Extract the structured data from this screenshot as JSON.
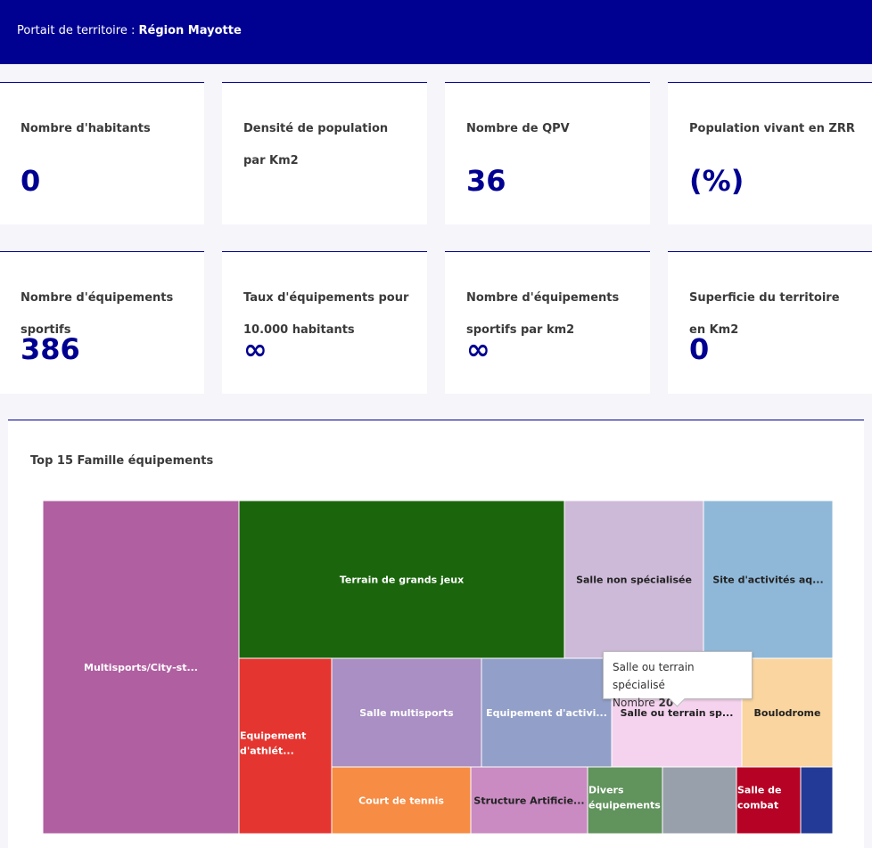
{
  "header": {
    "prefix": "Portait de territoire : ",
    "region": "Région Mayotte"
  },
  "cards": [
    {
      "label": "Nombre d'habitants",
      "value": "0"
    },
    {
      "label": "Densité de population par Km2",
      "value": ""
    },
    {
      "label": "Nombre de QPV",
      "value": "36"
    },
    {
      "label": "Population vivant en ZRR",
      "value": "(%)"
    },
    {
      "label": "Nombre d'équipements sportifs",
      "value": "386"
    },
    {
      "label": "Taux d'équipements pour 10.000 habitants",
      "value": "∞"
    },
    {
      "label": "Nombre d'équipements sportifs par km2",
      "value": "∞"
    },
    {
      "label": "Superficie du territoire en Km2",
      "value": "0"
    }
  ],
  "treemap": {
    "title": "Top 15 Famille équipements",
    "tiles": [
      {
        "label": "Multisports/City-st...",
        "color": "#b05fa1",
        "text_color": "#ffffff"
      },
      {
        "label": "Terrain de grands jeux",
        "color": "#1b660d",
        "text_color": "#ffffff"
      },
      {
        "label": "Salle non spécialisée",
        "color": "#cdbad8",
        "text_color": "#222222"
      },
      {
        "label": "Site d'activités aq...",
        "color": "#8fb8d8",
        "text_color": "#222222"
      },
      {
        "label": "Equipement d'athlét...",
        "color": "#e53530",
        "text_color": "#ffffff"
      },
      {
        "label": "Salle multisports",
        "color": "#a98fc3",
        "text_color": "#ffffff"
      },
      {
        "label": "Equipement d'activi...",
        "color": "#929fc8",
        "text_color": "#ffffff"
      },
      {
        "label": "Salle ou terrain sp...",
        "color": "#f5d3ee",
        "text_color": "#222222"
      },
      {
        "label": "Boulodrome",
        "color": "#fad59f",
        "text_color": "#222222"
      },
      {
        "label": "Court de tennis",
        "color": "#f78c44",
        "text_color": "#ffffff"
      },
      {
        "label": "Structure Artificie...",
        "color": "#c98bc2",
        "text_color": "#222222"
      },
      {
        "label": "Divers équipements ...",
        "color": "#61935d",
        "text_color": "#ffffff"
      },
      {
        "label": "",
        "color": "#97a0ab",
        "text_color": "#ffffff"
      },
      {
        "label": "Salle de combat",
        "color": "#b60225",
        "text_color": "#ffffff"
      },
      {
        "label": "",
        "color": "#233a96",
        "text_color": "#ffffff"
      }
    ]
  },
  "tooltip": {
    "name": "Salle ou terrain spécialisé",
    "metric_label": "Nombre",
    "metric_value": "20"
  }
}
